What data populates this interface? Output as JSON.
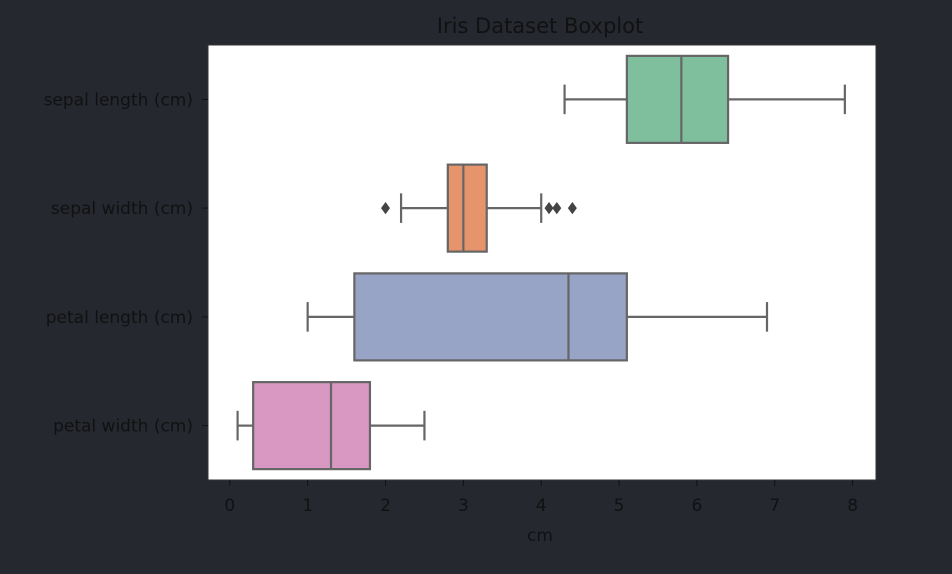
{
  "chart_data": {
    "type": "boxplot",
    "orientation": "horizontal",
    "title": "Iris Dataset Boxplot",
    "xlabel": "cm",
    "ylabel": "",
    "xlim": [
      -0.28,
      8.3
    ],
    "xticks": [
      0,
      1,
      2,
      3,
      4,
      5,
      6,
      7,
      8
    ],
    "grid": false,
    "legend": "none",
    "background": "#262830",
    "plot_background": "#ffffff",
    "box_edge_color": "#666666",
    "categories": [
      "sepal length (cm)",
      "sepal width (cm)",
      "petal length (cm)",
      "petal width (cm)"
    ],
    "boxes": [
      {
        "category": "sepal length (cm)",
        "whisker_low": 4.3,
        "q1": 5.1,
        "median": 5.8,
        "q3": 6.4,
        "whisker_high": 7.9,
        "outliers": [],
        "color": "#7fbf9e"
      },
      {
        "category": "sepal width (cm)",
        "whisker_low": 2.2,
        "q1": 2.8,
        "median": 3.0,
        "q3": 3.3,
        "whisker_high": 4.0,
        "outliers": [
          2.0,
          4.1,
          4.2,
          4.4
        ],
        "color": "#e5946c"
      },
      {
        "category": "petal length (cm)",
        "whisker_low": 1.0,
        "q1": 1.6,
        "median": 4.35,
        "q3": 5.1,
        "whisker_high": 6.9,
        "outliers": [],
        "color": "#97a4c6"
      },
      {
        "category": "petal width (cm)",
        "whisker_low": 0.1,
        "q1": 0.3,
        "median": 1.3,
        "q3": 1.8,
        "whisker_high": 2.5,
        "outliers": [],
        "color": "#d898c2"
      }
    ]
  }
}
